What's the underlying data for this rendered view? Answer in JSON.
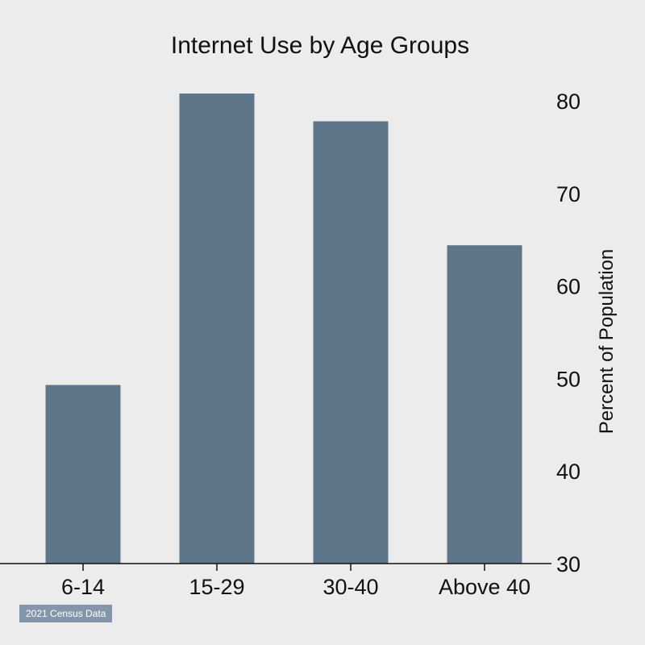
{
  "chart_data": {
    "type": "bar",
    "title": "Internet Use by Age Groups",
    "categories": [
      "6-14",
      "15-29",
      "30-40",
      "Above 40"
    ],
    "values": [
      49.3,
      80.8,
      77.8,
      64.4
    ],
    "xlabel": "",
    "ylabel": "Percent of Population",
    "ylim": [
      30,
      80.8
    ],
    "yticks": [
      30,
      40,
      50,
      60,
      70,
      80
    ],
    "y_axis_position": "right",
    "grid": false,
    "legend": "none",
    "bar_color": "#5e7689",
    "background_color": "#ececec"
  },
  "source_note": "2021 Census Data"
}
